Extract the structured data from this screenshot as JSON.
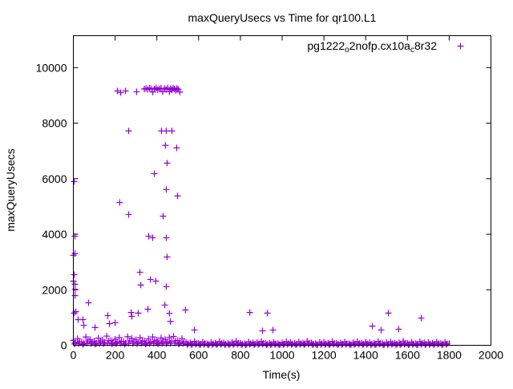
{
  "chart_data": {
    "type": "scatter",
    "title": "maxQueryUsecs vs Time for qr100.L1",
    "xlabel": "Time(s)",
    "ylabel": "maxQueryUsecs",
    "xlim": [
      0,
      2000
    ],
    "ylim": [
      0,
      11150
    ],
    "xticks": [
      0,
      200,
      400,
      600,
      800,
      1000,
      1200,
      1400,
      1600,
      1800,
      2000
    ],
    "yticks": [
      0,
      2000,
      4000,
      6000,
      8000,
      10000
    ],
    "grid": false,
    "legend_placement": "top-right",
    "color": "#9400d3",
    "series": [
      {
        "name": "pg1222_o2nofp.cx10a_c8r32",
        "legend_segments": [
          {
            "text": "pg1222",
            "sub": false
          },
          {
            "text": "o",
            "sub": true
          },
          {
            "text": "2nofp.cx10a",
            "sub": false
          },
          {
            "text": "c",
            "sub": true
          },
          {
            "text": "8r32",
            "sub": false
          }
        ],
        "baseline": {
          "start": 0,
          "step": 20,
          "values": [
            180,
            240,
            120,
            300,
            210,
            150,
            260,
            190,
            330,
            170,
            220,
            280,
            140,
            310,
            250,
            200,
            270,
            160,
            230,
            300,
            190,
            260,
            210,
            280,
            320,
            170,
            240,
            110,
            90,
            140,
            70,
            120,
            60,
            100,
            80,
            130,
            90,
            70,
            110,
            150,
            80,
            60,
            120,
            90,
            100,
            140,
            70,
            80,
            110,
            60,
            90,
            130,
            100,
            70,
            120,
            80,
            150,
            90,
            60,
            110,
            100,
            80,
            140,
            70,
            90,
            120,
            60,
            100,
            130,
            80,
            110,
            90,
            70,
            140,
            60,
            100,
            120,
            80,
            90,
            150,
            70,
            110,
            60,
            130,
            90,
            100,
            80,
            120,
            70,
            110
          ]
        },
        "points": [
          [
            4,
            5900
          ],
          [
            8,
            3930
          ],
          [
            8,
            3300
          ],
          [
            0,
            3240
          ],
          [
            4,
            2540
          ],
          [
            0,
            2310
          ],
          [
            8,
            2200
          ],
          [
            8,
            2020
          ],
          [
            8,
            1790
          ],
          [
            12,
            1210
          ],
          [
            4,
            1160
          ],
          [
            23,
            925
          ],
          [
            46,
            925
          ],
          [
            50,
            720
          ],
          [
            73,
            1530
          ],
          [
            104,
            640
          ],
          [
            165,
            1070
          ],
          [
            173,
            780
          ],
          [
            200,
            810
          ],
          [
            211,
            9160
          ],
          [
            227,
            9100
          ],
          [
            250,
            9160
          ],
          [
            222,
            5140
          ],
          [
            265,
            4710
          ],
          [
            265,
            7720
          ],
          [
            277,
            1180
          ],
          [
            280,
            1040
          ],
          [
            311,
            1160
          ],
          [
            303,
            9130
          ],
          [
            319,
            2630
          ],
          [
            323,
            2170
          ],
          [
            369,
            2370
          ],
          [
            395,
            2310
          ],
          [
            361,
            3930
          ],
          [
            380,
            3870
          ],
          [
            388,
            6180
          ],
          [
            340,
            9230
          ],
          [
            348,
            9250
          ],
          [
            356,
            9220
          ],
          [
            364,
            9260
          ],
          [
            372,
            9240
          ],
          [
            380,
            9120
          ],
          [
            388,
            9230
          ],
          [
            396,
            9270
          ],
          [
            404,
            9200
          ],
          [
            412,
            9240
          ],
          [
            420,
            9260
          ],
          [
            428,
            9130
          ],
          [
            436,
            9250
          ],
          [
            444,
            9220
          ],
          [
            452,
            9270
          ],
          [
            460,
            9130
          ],
          [
            466,
            9240
          ],
          [
            472,
            9200
          ],
          [
            478,
            9260
          ],
          [
            484,
            9230
          ],
          [
            490,
            9180
          ],
          [
            496,
            9250
          ],
          [
            502,
            9220
          ],
          [
            510,
            9120
          ],
          [
            422,
            7720
          ],
          [
            445,
            7720
          ],
          [
            472,
            7720
          ],
          [
            441,
            7200
          ],
          [
            449,
            6560
          ],
          [
            495,
            7110
          ],
          [
            430,
            4650
          ],
          [
            445,
            5610
          ],
          [
            499,
            5380
          ],
          [
            449,
            3180
          ],
          [
            445,
            3870
          ],
          [
            445,
            2110
          ],
          [
            438,
            1450
          ],
          [
            357,
            1300
          ],
          [
            537,
            1270
          ],
          [
            580,
            550
          ],
          [
            460,
            1150
          ],
          [
            465,
            860
          ],
          [
            845,
            1180
          ],
          [
            929,
            1160
          ],
          [
            956,
            550
          ],
          [
            906,
            520
          ],
          [
            1432,
            690
          ],
          [
            1474,
            550
          ],
          [
            1509,
            1160
          ],
          [
            1558,
            580
          ],
          [
            1666,
            980
          ]
        ]
      }
    ]
  }
}
